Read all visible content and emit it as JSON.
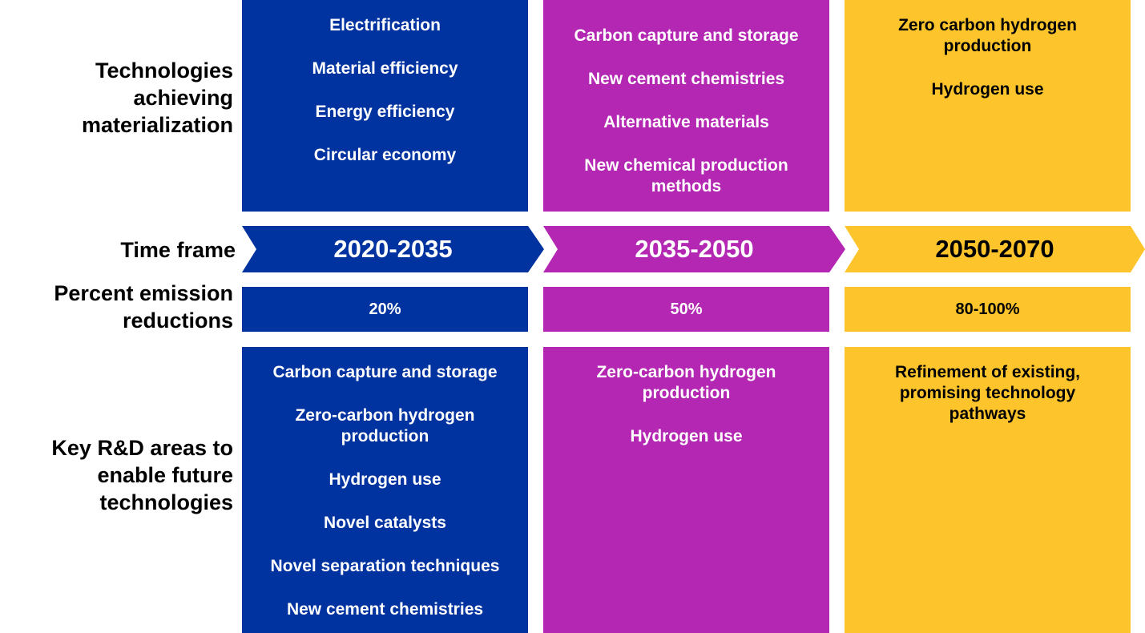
{
  "row_labels": {
    "technologies": [
      "Technologies",
      "achieving",
      "materialization"
    ],
    "time_frame": "Time frame",
    "percent": [
      "Percent emission",
      "reductions"
    ],
    "rd": [
      "Key R&D areas to",
      "enable future",
      "technologies"
    ]
  },
  "colors": {
    "blue": "#0033a0",
    "purple": "#b327b3",
    "yellow": "#fdc42b"
  },
  "columns": [
    {
      "timeframe": "2020-2035",
      "technologies": [
        "Electrification",
        "Material efficiency",
        "Energy efficiency",
        "Circular economy"
      ],
      "percent": "20%",
      "rd_areas": [
        "Carbon capture and storage",
        "Zero-carbon hydrogen production",
        "Hydrogen use",
        "Novel catalysts",
        "Novel separation techniques",
        "New cement chemistries"
      ]
    },
    {
      "timeframe": "2035-2050",
      "technologies": [
        "Carbon capture and storage",
        "New cement chemistries",
        "Alternative materials",
        "New chemical production methods"
      ],
      "percent": "50%",
      "rd_areas": [
        "Zero-carbon hydrogen production",
        "Hydrogen use"
      ]
    },
    {
      "timeframe": "2050-2070",
      "technologies": [
        "Zero carbon hydrogen production",
        "Hydrogen use"
      ],
      "percent": "80-100%",
      "rd_areas": [
        "Refinement of existing, promising technology pathways"
      ]
    }
  ]
}
